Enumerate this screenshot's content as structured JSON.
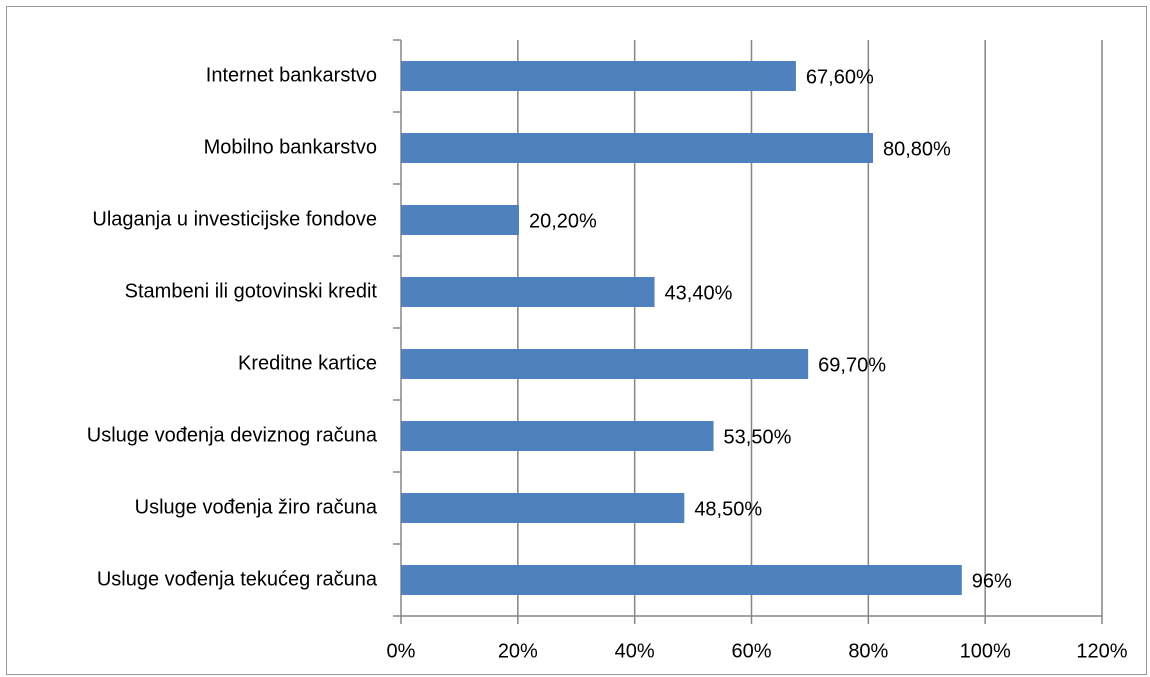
{
  "chart_data": {
    "type": "bar",
    "orientation": "horizontal",
    "categories": [
      "Internet bankarstvo",
      "Mobilno bankarstvo",
      "Ulaganja u investicijske fondove",
      "Stambeni ili gotovinski kredit",
      "Kreditne kartice",
      "Usluge vođenja deviznog računa",
      "Usluge vođenja žiro računa",
      "Usluge vođenja tekućeg računa"
    ],
    "values": [
      67.6,
      80.8,
      20.2,
      43.4,
      69.7,
      53.5,
      48.5,
      96
    ],
    "value_labels": [
      "67,60%",
      "80,80%",
      "20,20%",
      "43,40%",
      "69,70%",
      "53,50%",
      "48,50%",
      "96%"
    ],
    "color": "#4f81bd",
    "xlim": [
      0,
      120
    ],
    "xticks": [
      {
        "value": 0,
        "label": "0%"
      },
      {
        "value": 20,
        "label": "20%"
      },
      {
        "value": 40,
        "label": "40%"
      },
      {
        "value": 60,
        "label": "60%"
      },
      {
        "value": 80,
        "label": "80%"
      },
      {
        "value": 100,
        "label": "100%"
      },
      {
        "value": 120,
        "label": "120%"
      }
    ],
    "grid": true
  }
}
